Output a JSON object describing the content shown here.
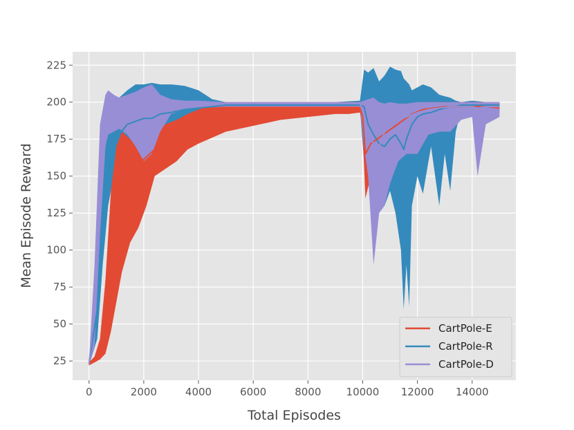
{
  "chart_data": {
    "type": "area",
    "title": "",
    "xlabel": "Total Episodes",
    "ylabel": "Mean Episode Reward",
    "xlim": [
      -600,
      15600
    ],
    "ylim": [
      12,
      234
    ],
    "xticks": [
      0,
      2000,
      4000,
      6000,
      8000,
      10000,
      12000,
      14000
    ],
    "yticks": [
      25,
      50,
      75,
      100,
      125,
      150,
      175,
      200,
      225
    ],
    "grid": true,
    "legend_position": "bottom-right",
    "colors": {
      "background": "#e5e5e5",
      "grid": "#ffffff"
    },
    "series": [
      {
        "name": "CartPole-R",
        "color": "#348abd",
        "x": [
          0,
          300,
          500,
          700,
          900,
          1100,
          1400,
          1700,
          2000,
          2300,
          2600,
          3000,
          3500,
          4000,
          4500,
          5000,
          6000,
          7000,
          8000,
          9000,
          9900,
          10050,
          10200,
          10400,
          10600,
          10800,
          11000,
          11200,
          11400,
          11500,
          11600,
          11700,
          11800,
          12000,
          12200,
          12500,
          12800,
          13000,
          13200,
          13400,
          13600,
          14000,
          14500,
          15000
        ],
        "mean": [
          23,
          60,
          120,
          160,
          172,
          178,
          185,
          187,
          189,
          189,
          192,
          193,
          195,
          196,
          197,
          198,
          198,
          198,
          198,
          198,
          198,
          197,
          185,
          178,
          172,
          170,
          175,
          178,
          172,
          168,
          175,
          180,
          185,
          190,
          192,
          193,
          195,
          196,
          197,
          197,
          198,
          198,
          198,
          198
        ],
        "upper": [
          25,
          80,
          160,
          195,
          200,
          203,
          208,
          212,
          212,
          213,
          212,
          212,
          211,
          208,
          202,
          200,
          200,
          200,
          200,
          200,
          201,
          222,
          220,
          223,
          214,
          218,
          224,
          222,
          221,
          216,
          214,
          212,
          208,
          210,
          212,
          210,
          205,
          204,
          203,
          201,
          200,
          201,
          200,
          200
        ],
        "lower": [
          22,
          40,
          90,
          130,
          150,
          158,
          162,
          160,
          162,
          163,
          168,
          172,
          178,
          184,
          190,
          195,
          196,
          196,
          196,
          196,
          196,
          160,
          145,
          140,
          145,
          130,
          140,
          125,
          100,
          60,
          90,
          62,
          130,
          150,
          138,
          170,
          130,
          165,
          140,
          180,
          195,
          196,
          196,
          196
        ]
      },
      {
        "name": "CartPole-E",
        "color": "#e24a33",
        "x": [
          0,
          200,
          400,
          600,
          800,
          1000,
          1200,
          1500,
          1800,
          2100,
          2400,
          2800,
          3200,
          3600,
          4000,
          4500,
          5000,
          5500,
          6000,
          6500,
          7000,
          7500,
          8000,
          8500,
          9000,
          9500,
          9900,
          10000,
          10100,
          10300,
          10600,
          10900,
          11200,
          11500,
          11800,
          12200,
          12600,
          13000,
          13500,
          14000,
          14500,
          15000
        ],
        "mean": [
          23,
          25,
          30,
          45,
          75,
          110,
          135,
          150,
          158,
          163,
          168,
          175,
          180,
          184,
          187,
          190,
          192,
          193,
          194,
          195,
          195,
          196,
          196,
          196,
          196,
          196,
          196,
          190,
          165,
          172,
          176,
          180,
          184,
          188,
          192,
          195,
          196,
          197,
          197,
          197,
          197,
          196
        ],
        "upper": [
          24,
          28,
          40,
          80,
          140,
          170,
          180,
          175,
          170,
          175,
          180,
          185,
          188,
          192,
          195,
          198,
          200,
          200,
          200,
          200,
          200,
          200,
          200,
          200,
          200,
          200,
          200,
          199,
          195,
          195,
          196,
          197,
          198,
          199,
          199,
          200,
          200,
          200,
          200,
          200,
          200,
          200
        ],
        "lower": [
          22,
          24,
          26,
          30,
          45,
          65,
          85,
          105,
          115,
          130,
          150,
          155,
          160,
          168,
          172,
          176,
          180,
          182,
          184,
          186,
          188,
          189,
          190,
          191,
          192,
          192,
          193,
          180,
          135,
          150,
          160,
          165,
          172,
          176,
          182,
          188,
          192,
          193,
          194,
          194,
          194,
          193
        ]
      },
      {
        "name": "CartPole-D",
        "color": "#988ed5",
        "x": [
          0,
          200,
          400,
          600,
          700,
          900,
          1100,
          1400,
          1700,
          2000,
          2300,
          2600,
          3000,
          3500,
          4000,
          5000,
          6000,
          7000,
          8000,
          9000,
          9900,
          10050,
          10200,
          10400,
          10600,
          10800,
          11000,
          11300,
          11600,
          12000,
          12400,
          12800,
          13200,
          13600,
          14000,
          14200,
          14500,
          15000
        ],
        "mean": [
          23,
          60,
          150,
          192,
          195,
          196,
          197,
          198,
          198,
          199,
          199,
          199,
          199,
          199,
          199,
          199,
          199,
          199,
          199,
          199,
          199,
          192,
          180,
          172,
          170,
          180,
          185,
          188,
          190,
          193,
          195,
          196,
          197,
          197,
          197,
          196,
          197,
          197
        ],
        "upper": [
          24,
          90,
          185,
          205,
          208,
          205,
          203,
          205,
          207,
          210,
          212,
          205,
          202,
          201,
          201,
          200,
          200,
          200,
          200,
          200,
          200,
          201,
          202,
          203,
          200,
          199,
          200,
          199,
          199,
          200,
          200,
          200,
          200,
          200,
          200,
          200,
          200,
          200
        ],
        "lower": [
          22,
          35,
          110,
          170,
          178,
          180,
          182,
          178,
          170,
          160,
          165,
          180,
          192,
          195,
          196,
          197,
          197,
          197,
          197,
          197,
          197,
          170,
          150,
          90,
          125,
          130,
          145,
          160,
          165,
          165,
          178,
          180,
          180,
          188,
          190,
          150,
          185,
          190
        ]
      }
    ]
  }
}
